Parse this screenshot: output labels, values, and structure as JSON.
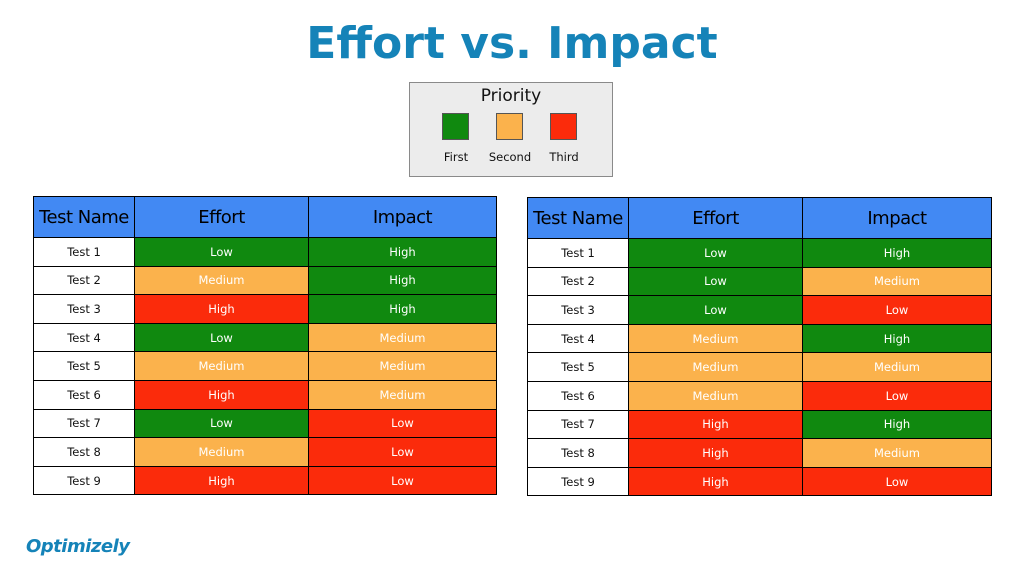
{
  "colors": {
    "title": "#1583b8",
    "header_bg": "#4289f3",
    "first": "#10890f",
    "second": "#fbb24c",
    "third": "#fb2b0b",
    "logo": "#1583b8"
  },
  "title": "Effort vs. Impact",
  "legend": {
    "title": "Priority",
    "items": [
      {
        "label": "First",
        "color": "first"
      },
      {
        "label": "Second",
        "color": "second"
      },
      {
        "label": "Third",
        "color": "third"
      }
    ]
  },
  "tables": [
    {
      "headers": [
        "Test Name",
        "Effort",
        "Impact"
      ],
      "rows": [
        {
          "name": "Test 1",
          "effort": "Low",
          "impact": "High"
        },
        {
          "name": "Test 2",
          "effort": "Medium",
          "impact": "High"
        },
        {
          "name": "Test 3",
          "effort": "High",
          "impact": "High"
        },
        {
          "name": "Test 4",
          "effort": "Low",
          "impact": "Medium"
        },
        {
          "name": "Test 5",
          "effort": "Medium",
          "impact": "Medium"
        },
        {
          "name": "Test 6",
          "effort": "High",
          "impact": "Medium"
        },
        {
          "name": "Test 7",
          "effort": "Low",
          "impact": "Low"
        },
        {
          "name": "Test 8",
          "effort": "Medium",
          "impact": "Low"
        },
        {
          "name": "Test 9",
          "effort": "High",
          "impact": "Low"
        }
      ]
    },
    {
      "headers": [
        "Test Name",
        "Effort",
        "Impact"
      ],
      "rows": [
        {
          "name": "Test 1",
          "effort": "Low",
          "impact": "High"
        },
        {
          "name": "Test 2",
          "effort": "Low",
          "impact": "Medium"
        },
        {
          "name": "Test 3",
          "effort": "Low",
          "impact": "Low"
        },
        {
          "name": "Test 4",
          "effort": "Medium",
          "impact": "High"
        },
        {
          "name": "Test 5",
          "effort": "Medium",
          "impact": "Medium"
        },
        {
          "name": "Test 6",
          "effort": "Medium",
          "impact": "Low"
        },
        {
          "name": "Test 7",
          "effort": "High",
          "impact": "High"
        },
        {
          "name": "Test 8",
          "effort": "High",
          "impact": "Medium"
        },
        {
          "name": "Test 9",
          "effort": "High",
          "impact": "Low"
        }
      ]
    }
  ],
  "logo": {
    "text": "Optimizely"
  }
}
